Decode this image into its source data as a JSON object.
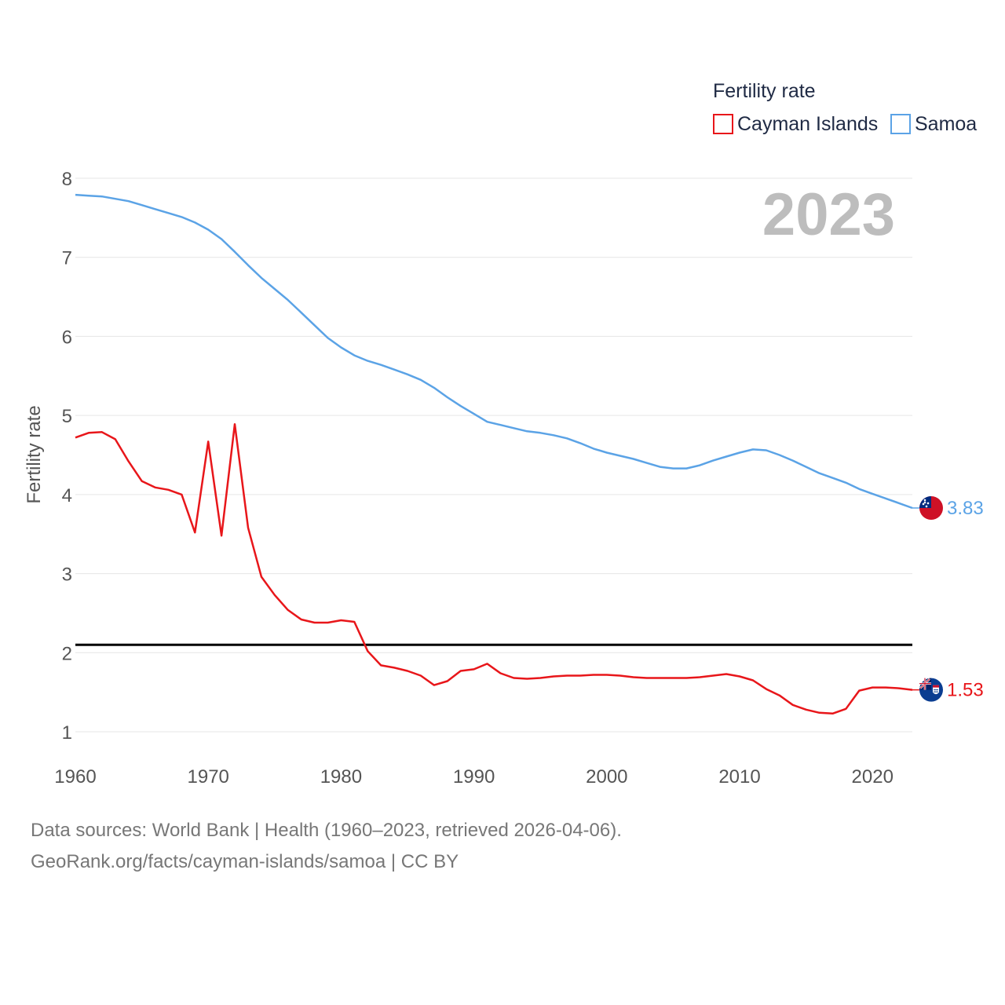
{
  "chart_data": {
    "type": "line",
    "title": "Fertility rate",
    "ylabel": "Fertility rate",
    "xlabel": "",
    "year_label": "2023",
    "xlim": [
      1960,
      2023
    ],
    "ylim": [
      0.5,
      8.2
    ],
    "x_ticks": [
      1960,
      1970,
      1980,
      1990,
      2000,
      2010,
      2020
    ],
    "y_ticks": [
      1,
      2,
      3,
      4,
      5,
      6,
      7,
      8
    ],
    "reference_line": {
      "y": 2.1,
      "color": "#000000"
    },
    "x": [
      1960,
      1961,
      1962,
      1963,
      1964,
      1965,
      1966,
      1967,
      1968,
      1969,
      1970,
      1971,
      1972,
      1973,
      1974,
      1975,
      1976,
      1977,
      1978,
      1979,
      1980,
      1981,
      1982,
      1983,
      1984,
      1985,
      1986,
      1987,
      1988,
      1989,
      1990,
      1991,
      1992,
      1993,
      1994,
      1995,
      1996,
      1997,
      1998,
      1999,
      2000,
      2001,
      2002,
      2003,
      2004,
      2005,
      2006,
      2007,
      2008,
      2009,
      2010,
      2011,
      2012,
      2013,
      2014,
      2015,
      2016,
      2017,
      2018,
      2019,
      2020,
      2021,
      2022,
      2023
    ],
    "series": [
      {
        "name": "Cayman Islands",
        "color": "#e8161a",
        "end_label": "1.53",
        "flag_icon": "cayman-islands-flag-icon",
        "values": [
          4.72,
          4.78,
          4.79,
          4.7,
          4.42,
          4.17,
          4.09,
          4.06,
          4.0,
          3.52,
          4.67,
          3.48,
          4.89,
          3.58,
          2.96,
          2.73,
          2.54,
          2.42,
          2.38,
          2.38,
          2.41,
          2.39,
          2.02,
          1.84,
          1.81,
          1.77,
          1.71,
          1.59,
          1.64,
          1.77,
          1.79,
          1.86,
          1.74,
          1.68,
          1.67,
          1.68,
          1.7,
          1.71,
          1.71,
          1.72,
          1.72,
          1.71,
          1.69,
          1.68,
          1.68,
          1.68,
          1.68,
          1.69,
          1.71,
          1.73,
          1.7,
          1.65,
          1.54,
          1.46,
          1.34,
          1.28,
          1.24,
          1.23,
          1.29,
          1.52,
          1.56,
          1.56,
          1.55,
          1.53
        ]
      },
      {
        "name": "Samoa",
        "color": "#5ba3e6",
        "end_label": "3.83",
        "flag_icon": "samoa-flag-icon",
        "values": [
          7.79,
          7.78,
          7.77,
          7.74,
          7.71,
          7.66,
          7.61,
          7.56,
          7.51,
          7.44,
          7.35,
          7.23,
          7.07,
          6.9,
          6.74,
          6.6,
          6.46,
          6.3,
          6.14,
          5.98,
          5.86,
          5.76,
          5.69,
          5.64,
          5.58,
          5.52,
          5.45,
          5.35,
          5.23,
          5.12,
          5.02,
          4.92,
          4.88,
          4.84,
          4.8,
          4.78,
          4.75,
          4.71,
          4.65,
          4.58,
          4.53,
          4.49,
          4.45,
          4.4,
          4.35,
          4.33,
          4.33,
          4.37,
          4.43,
          4.48,
          4.53,
          4.57,
          4.56,
          4.5,
          4.43,
          4.35,
          4.27,
          4.21,
          4.15,
          4.07,
          4.01,
          3.95,
          3.89,
          3.83
        ]
      }
    ]
  },
  "legend": {
    "title": "Fertility rate",
    "items": [
      "Cayman Islands",
      "Samoa"
    ]
  },
  "footer": {
    "line1": "Data sources: World Bank | Health (1960–2023, retrieved 2026-04-06).",
    "line2": "GeoRank.org/facts/cayman-islands/samoa | CC BY"
  }
}
